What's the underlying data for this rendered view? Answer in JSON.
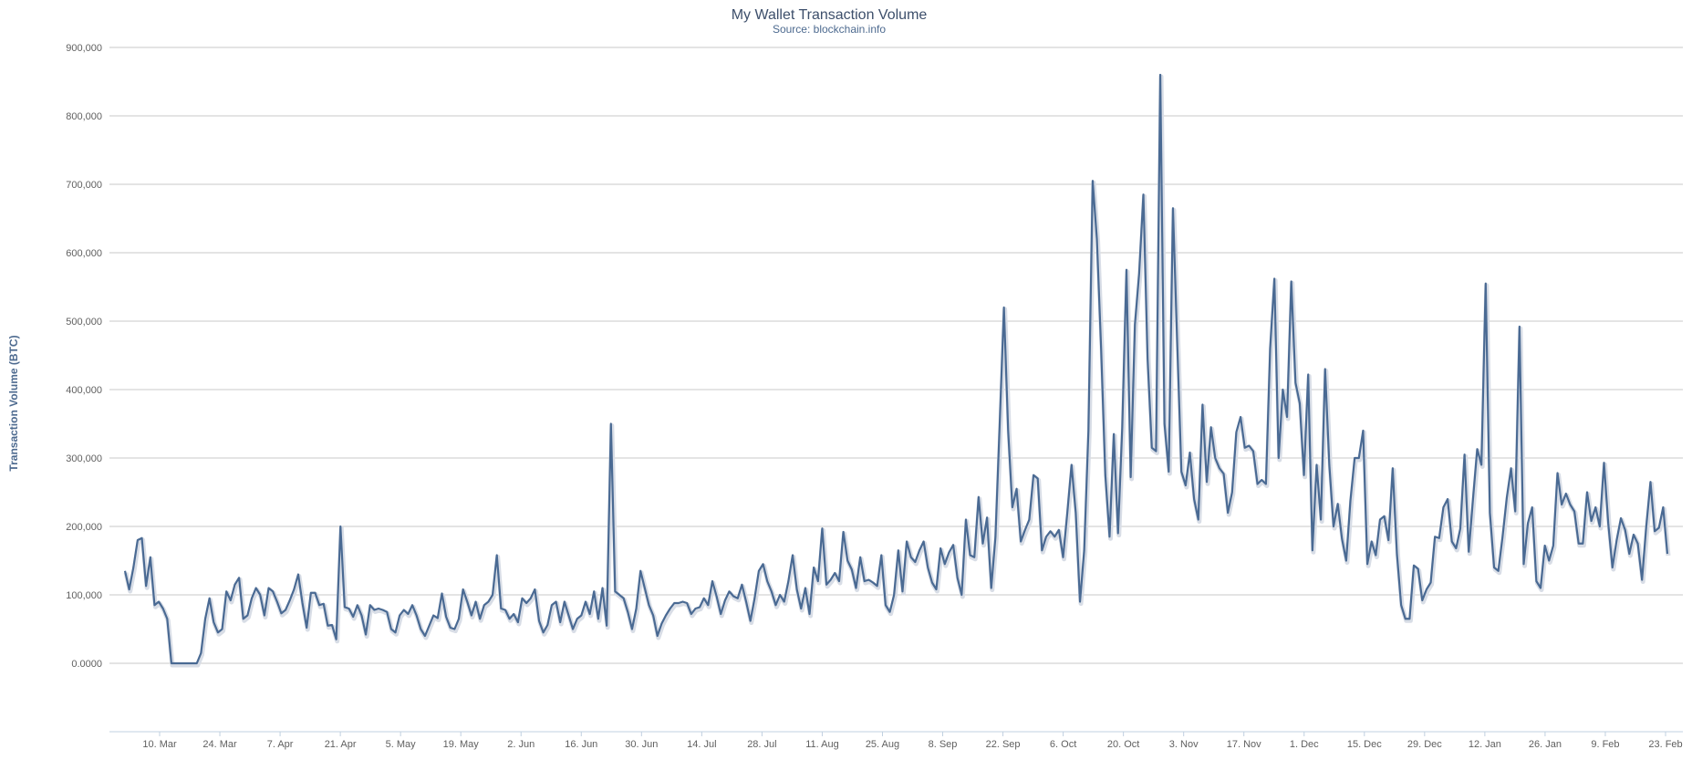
{
  "chart_data": {
    "type": "line",
    "title": "My Wallet Transaction Volume",
    "subtitle": "Source: blockchain.info",
    "ylabel": "Transaction Volume (BTC)",
    "ylim": [
      -100000,
      900000
    ],
    "y_ticks": [
      0,
      100000,
      200000,
      300000,
      400000,
      500000,
      600000,
      700000,
      800000,
      900000
    ],
    "y_tick_labels": [
      "0.0000",
      "100,000",
      "200,000",
      "300,000",
      "400,000",
      "500,000",
      "600,000",
      "700,000",
      "800,000",
      "900,000"
    ],
    "x_tick_labels": [
      "10. Mar",
      "24. Mar",
      "7. Apr",
      "21. Apr",
      "5. May",
      "19. May",
      "2. Jun",
      "16. Jun",
      "30. Jun",
      "14. Jul",
      "28. Jul",
      "11. Aug",
      "25. Aug",
      "8. Sep",
      "22. Sep",
      "6. Oct",
      "20. Oct",
      "3. Nov",
      "17. Nov",
      "1. Dec",
      "15. Dec",
      "29. Dec",
      "12. Jan",
      "26. Jan",
      "9. Feb",
      "23. Feb"
    ],
    "grid": true,
    "legend": "none",
    "line_color": "#4a6a93",
    "series": [
      {
        "values": [
          135000,
          108000,
          140000,
          180000,
          183000,
          113000,
          155000,
          85000,
          90000,
          80000,
          65000,
          0,
          0,
          0,
          0,
          0,
          0,
          0,
          15000,
          65000,
          95000,
          60000,
          45000,
          50000,
          105000,
          92000,
          115000,
          125000,
          65000,
          70000,
          95000,
          110000,
          100000,
          70000,
          110000,
          105000,
          90000,
          73000,
          78000,
          92000,
          108000,
          130000,
          88000,
          52000,
          103000,
          103000,
          85000,
          87000,
          55000,
          56000,
          35000,
          200000,
          82000,
          80000,
          68000,
          85000,
          70000,
          42000,
          85000,
          78000,
          80000,
          78000,
          75000,
          50000,
          45000,
          70000,
          78000,
          72000,
          85000,
          70000,
          50000,
          40000,
          55000,
          70000,
          66000,
          102000,
          68000,
          52000,
          50000,
          65000,
          108000,
          90000,
          70000,
          90000,
          65000,
          85000,
          90000,
          100000,
          158000,
          80000,
          78000,
          65000,
          72000,
          60000,
          95000,
          88000,
          95000,
          108000,
          62000,
          45000,
          56000,
          85000,
          90000,
          60000,
          90000,
          70000,
          50000,
          65000,
          70000,
          90000,
          72000,
          105000,
          65000,
          110000,
          55000,
          350000,
          105000,
          100000,
          95000,
          75000,
          50000,
          80000,
          135000,
          110000,
          85000,
          70000,
          40000,
          58000,
          70000,
          80000,
          88000,
          88000,
          90000,
          88000,
          72000,
          80000,
          82000,
          95000,
          85000,
          120000,
          98000,
          72000,
          92000,
          105000,
          98000,
          95000,
          115000,
          90000,
          62000,
          95000,
          135000,
          145000,
          120000,
          105000,
          85000,
          100000,
          90000,
          120000,
          158000,
          108000,
          80000,
          110000,
          72000,
          140000,
          120000,
          197000,
          115000,
          122000,
          132000,
          120000,
          192000,
          150000,
          137000,
          110000,
          155000,
          120000,
          122000,
          118000,
          113000,
          158000,
          85000,
          75000,
          100000,
          165000,
          105000,
          178000,
          155000,
          148000,
          165000,
          178000,
          140000,
          118000,
          108000,
          168000,
          145000,
          162000,
          173000,
          125000,
          100000,
          210000,
          158000,
          155000,
          243000,
          175000,
          213000,
          110000,
          185000,
          350000,
          520000,
          340000,
          228000,
          255000,
          178000,
          195000,
          210000,
          275000,
          270000,
          165000,
          185000,
          193000,
          185000,
          195000,
          155000,
          220000,
          290000,
          220000,
          90000,
          165000,
          340000,
          705000,
          620000,
          460000,
          275000,
          185000,
          335000,
          190000,
          345000,
          575000,
          272000,
          495000,
          570000,
          685000,
          445000,
          315000,
          310000,
          860000,
          350000,
          280000,
          665000,
          470000,
          280000,
          260000,
          308000,
          240000,
          210000,
          378000,
          265000,
          345000,
          300000,
          285000,
          277000,
          220000,
          250000,
          338000,
          360000,
          315000,
          318000,
          310000,
          262000,
          268000,
          262000,
          460000,
          562000,
          300000,
          400000,
          360000,
          558000,
          410000,
          380000,
          275000,
          422000,
          165000,
          290000,
          210000,
          430000,
          290000,
          200000,
          233000,
          182000,
          150000,
          238000,
          300000,
          300000,
          340000,
          145000,
          178000,
          158000,
          210000,
          215000,
          180000,
          285000,
          160000,
          85000,
          65000,
          65000,
          143000,
          138000,
          92000,
          108000,
          118000,
          185000,
          183000,
          228000,
          240000,
          178000,
          168000,
          197000,
          305000,
          163000,
          240000,
          313000,
          290000,
          555000,
          220000,
          140000,
          135000,
          185000,
          242000,
          285000,
          222000,
          492000,
          145000,
          205000,
          228000,
          120000,
          110000,
          172000,
          150000,
          172000,
          278000,
          232000,
          248000,
          232000,
          222000,
          175000,
          175000,
          250000,
          208000,
          228000,
          200000,
          293000,
          205000,
          140000,
          180000,
          212000,
          195000,
          160000,
          188000,
          175000,
          122000,
          200000,
          265000,
          193000,
          198000,
          228000,
          160000
        ]
      }
    ]
  }
}
